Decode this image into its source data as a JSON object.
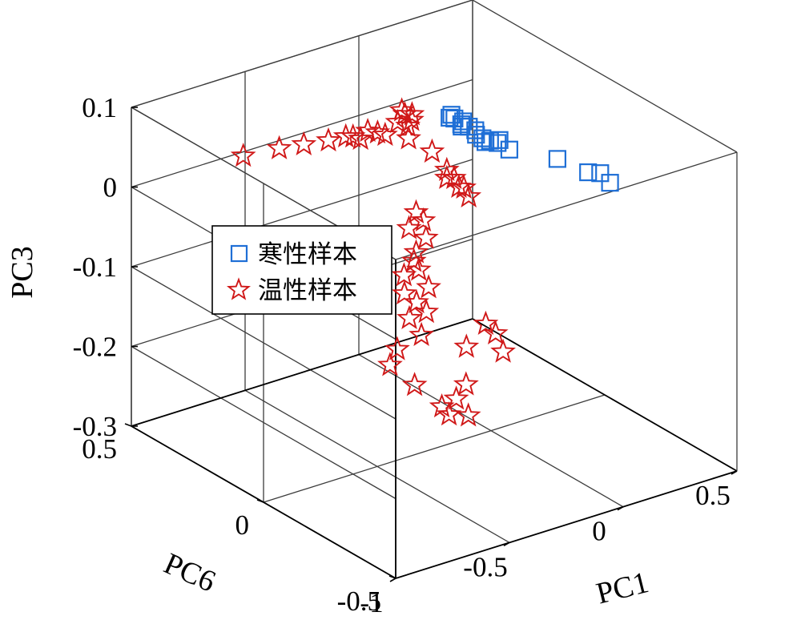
{
  "chart_data": {
    "type": "scatter",
    "dimensions": 3,
    "xlabel": "PC1",
    "ylabel": "PC6",
    "zlabel": "PC3",
    "xlim": [
      -1,
      0.5
    ],
    "ylim": [
      -0.5,
      0.5
    ],
    "zlim": [
      -0.3,
      0.1
    ],
    "x_ticks": [
      "-1",
      "-0.5",
      "0",
      "0.5"
    ],
    "y_ticks": [
      "-0.5",
      "0",
      "0.5"
    ],
    "z_ticks": [
      "-0.3",
      "-0.2",
      "-0.1",
      "0",
      "0.1"
    ],
    "grid": true,
    "box": true,
    "legend_position": "left",
    "series": [
      {
        "name": "寒性样本",
        "marker": "square",
        "color": "#1f6fd6",
        "points": [
          [
            0.05,
            0.2,
            0.05
          ],
          [
            0.06,
            0.19,
            0.05
          ],
          [
            0.08,
            0.18,
            0.04
          ],
          [
            0.1,
            0.17,
            0.04
          ],
          [
            0.07,
            0.21,
            0.05
          ],
          [
            0.12,
            0.16,
            0.03
          ],
          [
            0.15,
            0.15,
            0.02
          ],
          [
            0.09,
            0.19,
            0.04
          ],
          [
            0.18,
            0.13,
            0.02
          ],
          [
            0.11,
            0.2,
            0.04
          ],
          [
            0.14,
            0.18,
            0.03
          ],
          [
            0.17,
            0.15,
            0.02
          ],
          [
            0.2,
            0.14,
            0.02
          ],
          [
            0.16,
            0.17,
            0.02
          ],
          [
            0.22,
            0.12,
            0.01
          ],
          [
            0.35,
            0.05,
            0.0
          ],
          [
            0.45,
            0.02,
            -0.02
          ],
          [
            0.48,
            0.0,
            -0.02
          ],
          [
            0.5,
            -0.02,
            -0.03
          ]
        ]
      },
      {
        "name": "温性样本",
        "marker": "star",
        "color": "#d01818",
        "points": [
          [
            -0.12,
            0.25,
            0.05
          ],
          [
            -0.1,
            0.24,
            0.06
          ],
          [
            -0.08,
            0.23,
            0.06
          ],
          [
            -0.11,
            0.22,
            0.05
          ],
          [
            -0.09,
            0.26,
            0.06
          ],
          [
            -0.07,
            0.24,
            0.05
          ],
          [
            -0.13,
            0.2,
            0.04
          ],
          [
            -0.15,
            0.3,
            0.03
          ],
          [
            -0.17,
            0.32,
            0.03
          ],
          [
            -0.14,
            0.28,
            0.03
          ],
          [
            -0.2,
            0.35,
            0.02
          ],
          [
            -0.19,
            0.33,
            0.02
          ],
          [
            -0.22,
            0.36,
            0.02
          ],
          [
            -0.25,
            0.4,
            0.01
          ],
          [
            -0.3,
            0.45,
            0.0
          ],
          [
            -0.35,
            0.5,
            -0.01
          ],
          [
            -0.45,
            0.55,
            -0.02
          ],
          [
            -0.05,
            0.18,
            0.02
          ],
          [
            -0.02,
            0.15,
            0.0
          ],
          [
            0.0,
            0.14,
            -0.01
          ],
          [
            0.02,
            0.12,
            -0.02
          ],
          [
            0.03,
            0.11,
            -0.03
          ],
          [
            -0.02,
            0.15,
            -0.01
          ],
          [
            0.01,
            0.13,
            -0.02
          ],
          [
            -0.12,
            0.18,
            -0.05
          ],
          [
            -0.1,
            0.17,
            -0.06
          ],
          [
            -0.14,
            0.19,
            -0.07
          ],
          [
            -0.1,
            0.16,
            -0.08
          ],
          [
            -0.12,
            0.18,
            -0.1
          ],
          [
            -0.13,
            0.18,
            -0.11
          ],
          [
            -0.15,
            0.2,
            -0.13
          ],
          [
            -0.12,
            0.17,
            -0.12
          ],
          [
            -0.1,
            0.15,
            -0.14
          ],
          [
            -0.16,
            0.19,
            -0.15
          ],
          [
            -0.13,
            0.17,
            -0.16
          ],
          [
            -0.11,
            0.15,
            -0.17
          ],
          [
            -0.15,
            0.18,
            -0.18
          ],
          [
            -0.12,
            0.16,
            -0.2
          ],
          [
            -0.18,
            0.2,
            -0.22
          ],
          [
            -0.2,
            0.21,
            -0.24
          ],
          [
            -0.15,
            0.16,
            -0.26
          ],
          [
            -0.05,
            0.05,
            -0.2
          ],
          [
            0.0,
            0.02,
            -0.17
          ],
          [
            0.02,
            0.0,
            -0.18
          ],
          [
            0.03,
            -0.02,
            -0.2
          ],
          [
            -0.04,
            0.06,
            -0.25
          ],
          [
            -0.06,
            0.08,
            -0.27
          ],
          [
            -0.1,
            0.1,
            -0.28
          ],
          [
            -0.08,
            0.09,
            -0.29
          ],
          [
            -0.03,
            0.06,
            -0.29
          ]
        ]
      }
    ]
  },
  "legend": {
    "entries": [
      "寒性样本",
      "温性样本"
    ]
  }
}
